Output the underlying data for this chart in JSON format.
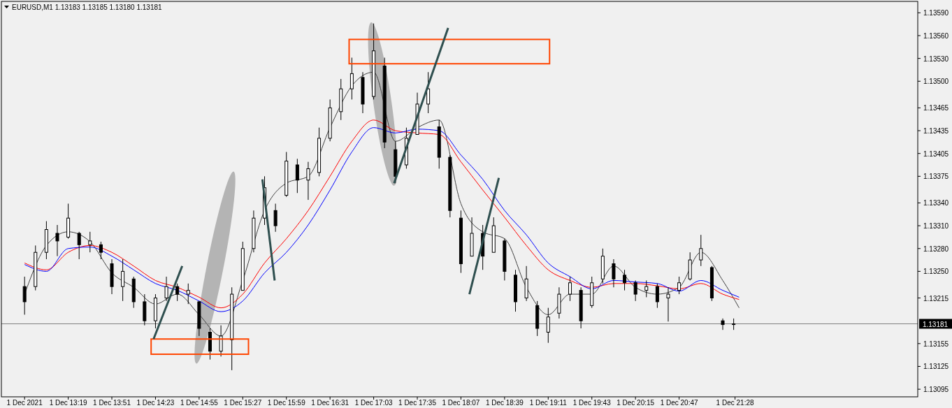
{
  "chart_data": {
    "type": "candlestick",
    "title": "EURUSD,M1  1.13183 1.13185 1.13180 1.13181",
    "x": [
      "2021-12-01T12:47",
      "2021-12-01T12:55",
      "2021-12-01T13:03",
      "2021-12-01T13:11",
      "2021-12-01T13:19",
      "2021-12-01T13:27",
      "2021-12-01T13:35",
      "2021-12-01T13:43",
      "2021-12-01T13:51",
      "2021-12-01T13:59",
      "2021-12-01T14:07",
      "2021-12-01T14:15",
      "2021-12-01T14:23",
      "2021-12-01T14:31",
      "2021-12-01T14:39",
      "2021-12-01T14:47",
      "2021-12-01T14:55",
      "2021-12-01T15:03",
      "2021-12-01T15:11",
      "2021-12-01T15:19",
      "2021-12-01T15:27",
      "2021-12-01T15:35",
      "2021-12-01T15:43",
      "2021-12-01T15:51",
      "2021-12-01T15:59",
      "2021-12-01T16:07",
      "2021-12-01T16:15",
      "2021-12-01T16:23",
      "2021-12-01T16:31",
      "2021-12-01T16:39",
      "2021-12-01T16:47",
      "2021-12-01T16:55",
      "2021-12-01T17:03",
      "2021-12-01T17:11",
      "2021-12-01T17:19",
      "2021-12-01T17:27",
      "2021-12-01T17:35",
      "2021-12-01T17:43",
      "2021-12-01T17:51",
      "2021-12-01T17:59",
      "2021-12-01T18:07",
      "2021-12-01T18:15",
      "2021-12-01T18:23",
      "2021-12-01T18:31",
      "2021-12-01T18:39",
      "2021-12-01T18:47",
      "2021-12-01T18:55",
      "2021-12-01T19:03",
      "2021-12-01T19:11",
      "2021-12-01T19:19",
      "2021-12-01T19:27",
      "2021-12-01T19:35",
      "2021-12-01T19:43",
      "2021-12-01T19:51",
      "2021-12-01T19:59",
      "2021-12-01T20:07",
      "2021-12-01T20:15",
      "2021-12-01T20:23",
      "2021-12-01T20:31",
      "2021-12-01T20:39",
      "2021-12-01T20:47",
      "2021-12-01T20:55",
      "2021-12-01T21:03",
      "2021-12-01T21:11",
      "2021-12-01T21:19",
      "2021-12-01T21:27"
    ],
    "ohlc": [
      [
        1.1323,
        1.13243,
        1.13193,
        1.1321
      ],
      [
        1.1323,
        1.13284,
        1.13225,
        1.13275
      ],
      [
        1.13275,
        1.13316,
        1.13266,
        1.13305
      ],
      [
        1.133,
        1.13311,
        1.1327,
        1.1329
      ],
      [
        1.13295,
        1.13339,
        1.13293,
        1.1332
      ],
      [
        1.133,
        1.13302,
        1.13266,
        1.13285
      ],
      [
        1.13285,
        1.13302,
        1.13275,
        1.1329
      ],
      [
        1.13285,
        1.13289,
        1.13266,
        1.13275
      ],
      [
        1.1326,
        1.13266,
        1.1322,
        1.1323
      ],
      [
        1.1323,
        1.13266,
        1.13211,
        1.1325
      ],
      [
        1.1324,
        1.13243,
        1.13202,
        1.1321
      ],
      [
        1.1321,
        1.1322,
        1.13179,
        1.13185
      ],
      [
        1.13185,
        1.1322,
        1.13175,
        1.13215
      ],
      [
        1.13215,
        1.13243,
        1.13211,
        1.1323
      ],
      [
        1.1323,
        1.13234,
        1.13211,
        1.1322
      ],
      [
        1.1322,
        1.13234,
        1.13207,
        1.13225
      ],
      [
        1.1321,
        1.13211,
        1.13165,
        1.13175
      ],
      [
        1.1317,
        1.13175,
        1.13134,
        1.13145
      ],
      [
        1.13145,
        1.13179,
        1.13138,
        1.13165
      ],
      [
        1.1316,
        1.13229,
        1.1312,
        1.1322
      ],
      [
        1.13225,
        1.13289,
        1.13225,
        1.1328
      ],
      [
        1.1328,
        1.1333,
        1.13275,
        1.1332
      ],
      [
        1.1332,
        1.13375,
        1.13311,
        1.1336
      ],
      [
        1.1333,
        1.13339,
        1.13302,
        1.1331
      ],
      [
        1.1335,
        1.13407,
        1.13348,
        1.13395
      ],
      [
        1.1339,
        1.13398,
        1.13353,
        1.1337
      ],
      [
        1.1337,
        1.13394,
        1.13344,
        1.13385
      ],
      [
        1.1338,
        1.13439,
        1.13375,
        1.13425
      ],
      [
        1.13425,
        1.13476,
        1.13421,
        1.13465
      ],
      [
        1.1346,
        1.13503,
        1.13449,
        1.1349
      ],
      [
        1.1349,
        1.13531,
        1.13476,
        1.1351
      ],
      [
        1.13505,
        1.13512,
        1.13458,
        1.1347
      ],
      [
        1.1348,
        1.13576,
        1.13476,
        1.1354
      ],
      [
        1.1352,
        1.13531,
        1.13412,
        1.1342
      ],
      [
        1.1341,
        1.13421,
        1.13366,
        1.13375
      ],
      [
        1.1339,
        1.13439,
        1.13385,
        1.13425
      ],
      [
        1.1343,
        1.13485,
        1.1343,
        1.1347
      ],
      [
        1.1347,
        1.13512,
        1.13458,
        1.1349
      ],
      [
        1.1344,
        1.13449,
        1.13385,
        1.134
      ],
      [
        1.134,
        1.13403,
        1.13321,
        1.1333
      ],
      [
        1.1332,
        1.1333,
        1.13248,
        1.1326
      ],
      [
        1.1327,
        1.13321,
        1.1327,
        1.133
      ],
      [
        1.133,
        1.13311,
        1.13252,
        1.1327
      ],
      [
        1.13275,
        1.13321,
        1.13275,
        1.1331
      ],
      [
        1.1329,
        1.13293,
        1.13238,
        1.1325
      ],
      [
        1.13245,
        1.13252,
        1.13197,
        1.1321
      ],
      [
        1.13215,
        1.13257,
        1.13211,
        1.1324
      ],
      [
        1.13205,
        1.13211,
        1.13165,
        1.13175
      ],
      [
        1.1317,
        1.13202,
        1.13156,
        1.1319
      ],
      [
        1.13195,
        1.13229,
        1.13188,
        1.1322
      ],
      [
        1.1322,
        1.13243,
        1.13211,
        1.13235
      ],
      [
        1.13225,
        1.13229,
        1.13175,
        1.13185
      ],
      [
        1.13205,
        1.13243,
        1.13202,
        1.13235
      ],
      [
        1.1324,
        1.1328,
        1.13234,
        1.1327
      ],
      [
        1.1326,
        1.13266,
        1.13229,
        1.1324
      ],
      [
        1.13245,
        1.13252,
        1.13225,
        1.13235
      ],
      [
        1.13235,
        1.13238,
        1.13211,
        1.1322
      ],
      [
        1.13225,
        1.13238,
        1.13216,
        1.1323
      ],
      [
        1.1323,
        1.13234,
        1.13202,
        1.1321
      ],
      [
        1.13215,
        1.13229,
        1.13184,
        1.1322
      ],
      [
        1.13225,
        1.13243,
        1.1322,
        1.13235
      ],
      [
        1.1324,
        1.13275,
        1.13238,
        1.13265
      ],
      [
        1.13265,
        1.13298,
        1.13257,
        1.1328
      ],
      [
        1.13255,
        1.13257,
        1.13211,
        1.13215
      ],
      [
        1.13185,
        1.13188,
        1.13173,
        1.1318
      ],
      [
        1.1318,
        1.13188,
        1.13173,
        1.13181
      ]
    ],
    "color": "#000000",
    "series": [
      {
        "type": "line",
        "color": "#404040",
        "x": [
          "2021-12-01T12:47",
          "2021-12-01T13:03",
          "2021-12-01T13:19",
          "2021-12-01T13:35",
          "2021-12-01T13:51",
          "2021-12-01T14:07",
          "2021-12-01T14:23",
          "2021-12-01T14:39",
          "2021-12-01T14:55",
          "2021-12-01T15:11",
          "2021-12-01T15:27",
          "2021-12-01T15:43",
          "2021-12-01T15:59",
          "2021-12-01T16:15",
          "2021-12-01T16:31",
          "2021-12-01T16:47",
          "2021-12-01T17:03",
          "2021-12-01T17:19",
          "2021-12-01T17:35",
          "2021-12-01T17:51",
          "2021-12-01T18:07",
          "2021-12-01T18:23",
          "2021-12-01T18:39",
          "2021-12-01T18:55",
          "2021-12-01T19:11",
          "2021-12-01T19:27",
          "2021-12-01T19:43",
          "2021-12-01T19:59",
          "2021-12-01T20:15",
          "2021-12-01T20:31",
          "2021-12-01T20:47",
          "2021-12-01T21:03",
          "2021-12-01T21:19",
          "2021-12-01T21:31"
        ],
        "values": [
          1.1322,
          1.13284,
          1.13302,
          1.13289,
          1.13248,
          1.13229,
          1.13207,
          1.1322,
          1.13193,
          1.13165,
          1.13238,
          1.1333,
          1.13366,
          1.13375,
          1.13439,
          1.13494,
          1.13512,
          1.13421,
          1.13439,
          1.13449,
          1.13339,
          1.13302,
          1.13293,
          1.13229,
          1.13193,
          1.1322,
          1.1322,
          1.13257,
          1.13229,
          1.1322,
          1.13229,
          1.13275,
          1.13238,
          1.13202
        ]
      },
      {
        "type": "line",
        "color": "#ff0000",
        "x": [
          "2021-12-01T12:47",
          "2021-12-01T13:03",
          "2021-12-01T13:19",
          "2021-12-01T13:35",
          "2021-12-01T13:51",
          "2021-12-01T14:07",
          "2021-12-01T14:23",
          "2021-12-01T14:39",
          "2021-12-01T14:55",
          "2021-12-01T15:11",
          "2021-12-01T15:27",
          "2021-12-01T15:43",
          "2021-12-01T15:59",
          "2021-12-01T16:15",
          "2021-12-01T16:31",
          "2021-12-01T16:47",
          "2021-12-01T17:03",
          "2021-12-01T17:19",
          "2021-12-01T17:35",
          "2021-12-01T17:51",
          "2021-12-01T18:07",
          "2021-12-01T18:23",
          "2021-12-01T18:39",
          "2021-12-01T18:55",
          "2021-12-01T19:11",
          "2021-12-01T19:27",
          "2021-12-01T19:43",
          "2021-12-01T19:59",
          "2021-12-01T20:15",
          "2021-12-01T20:31",
          "2021-12-01T20:47",
          "2021-12-01T21:03",
          "2021-12-01T21:19",
          "2021-12-01T21:31"
        ],
        "values": [
          1.13261,
          1.13252,
          1.13275,
          1.13284,
          1.13275,
          1.13257,
          1.13238,
          1.13229,
          1.13216,
          1.13202,
          1.1322,
          1.13261,
          1.13293,
          1.1333,
          1.13375,
          1.13421,
          1.13449,
          1.13435,
          1.13432,
          1.1343,
          1.13394,
          1.13357,
          1.13321,
          1.13284,
          1.13252,
          1.13238,
          1.13229,
          1.13234,
          1.13234,
          1.13231,
          1.13227,
          1.13234,
          1.1322,
          1.13213
        ]
      },
      {
        "type": "line",
        "color": "#0000ff",
        "x": [
          "2021-12-01T12:47",
          "2021-12-01T13:03",
          "2021-12-01T13:19",
          "2021-12-01T13:35",
          "2021-12-01T13:51",
          "2021-12-01T14:07",
          "2021-12-01T14:23",
          "2021-12-01T14:39",
          "2021-12-01T14:55",
          "2021-12-01T15:11",
          "2021-12-01T15:27",
          "2021-12-01T15:43",
          "2021-12-01T15:59",
          "2021-12-01T16:15",
          "2021-12-01T16:31",
          "2021-12-01T16:47",
          "2021-12-01T17:03",
          "2021-12-01T17:19",
          "2021-12-01T17:35",
          "2021-12-01T17:51",
          "2021-12-01T18:07",
          "2021-12-01T18:23",
          "2021-12-01T18:39",
          "2021-12-01T18:55",
          "2021-12-01T19:11",
          "2021-12-01T19:27",
          "2021-12-01T19:43",
          "2021-12-01T19:59",
          "2021-12-01T20:15",
          "2021-12-01T20:31",
          "2021-12-01T20:47",
          "2021-12-01T21:03",
          "2021-12-01T21:19",
          "2021-12-01T21:31"
        ],
        "values": [
          1.13259,
          1.1325,
          1.1328,
          1.13282,
          1.1327,
          1.13252,
          1.13234,
          1.13225,
          1.13211,
          1.13197,
          1.13211,
          1.13248,
          1.13275,
          1.13311,
          1.13357,
          1.13407,
          1.13439,
          1.13432,
          1.13437,
          1.13435,
          1.13403,
          1.13371,
          1.1333,
          1.13298,
          1.13261,
          1.13243,
          1.13227,
          1.13238,
          1.13236,
          1.13234,
          1.13224,
          1.13238,
          1.13225,
          1.13216
        ]
      }
    ],
    "xlim": [
      "2021-12-01T12:30",
      "2021-12-01T23:42"
    ],
    "xticks": [
      {
        "value": "2021-12-01T12:47",
        "label": "1 Dec 2021"
      },
      {
        "value": "2021-12-01T13:19",
        "label": "1 Dec 13:19"
      },
      {
        "value": "2021-12-01T13:51",
        "label": "1 Dec 13:51"
      },
      {
        "value": "2021-12-01T14:23",
        "label": "1 Dec 14:23"
      },
      {
        "value": "2021-12-01T14:55",
        "label": "1 Dec 14:55"
      },
      {
        "value": "2021-12-01T15:27",
        "label": "1 Dec 15:27"
      },
      {
        "value": "2021-12-01T15:59",
        "label": "1 Dec 15:59"
      },
      {
        "value": "2021-12-01T16:31",
        "label": "1 Dec 16:31"
      },
      {
        "value": "2021-12-01T17:03",
        "label": "1 Dec 17:03"
      },
      {
        "value": "2021-12-01T17:35",
        "label": "1 Dec 17:35"
      },
      {
        "value": "2021-12-01T18:07",
        "label": "1 Dec 18:07"
      },
      {
        "value": "2021-12-01T18:39",
        "label": "1 Dec 18:39"
      },
      {
        "value": "2021-12-01T19:11",
        "label": "1 Dec 19:11"
      },
      {
        "value": "2021-12-01T19:43",
        "label": "1 Dec 19:43"
      },
      {
        "value": "2021-12-01T20:15",
        "label": "1 Dec 20:15"
      },
      {
        "value": "2021-12-01T20:47",
        "label": "1 Dec 20:47"
      },
      {
        "value": "2021-12-01T21:28",
        "label": "1 Dec 21:28"
      }
    ],
    "ylim": [
      1.13085,
      1.13605
    ],
    "yticks": [
      {
        "value": 1.13095,
        "label": "1.13095"
      },
      {
        "value": 1.13125,
        "label": "1.13125"
      },
      {
        "value": 1.13155,
        "label": "1.13155"
      },
      {
        "value": 1.13215,
        "label": "1.13215"
      },
      {
        "value": 1.1325,
        "label": "1.13250"
      },
      {
        "value": 1.1328,
        "label": "1.13280"
      },
      {
        "value": 1.1331,
        "label": "1.13310"
      },
      {
        "value": 1.1334,
        "label": "1.13340"
      },
      {
        "value": 1.13375,
        "label": "1.13375"
      },
      {
        "value": 1.13405,
        "label": "1.13405"
      },
      {
        "value": 1.13435,
        "label": "1.13435"
      },
      {
        "value": 1.13465,
        "label": "1.13465"
      },
      {
        "value": 1.135,
        "label": "1.13500"
      },
      {
        "value": 1.1353,
        "label": "1.13530"
      },
      {
        "value": 1.1356,
        "label": "1.13560"
      },
      {
        "value": 1.1359,
        "label": "1.13590"
      }
    ],
    "ref_lines": [
      {
        "axis": "y",
        "value": 1.13181,
        "label": "1.13181",
        "color": "#808080"
      }
    ],
    "grid": false
  }
}
